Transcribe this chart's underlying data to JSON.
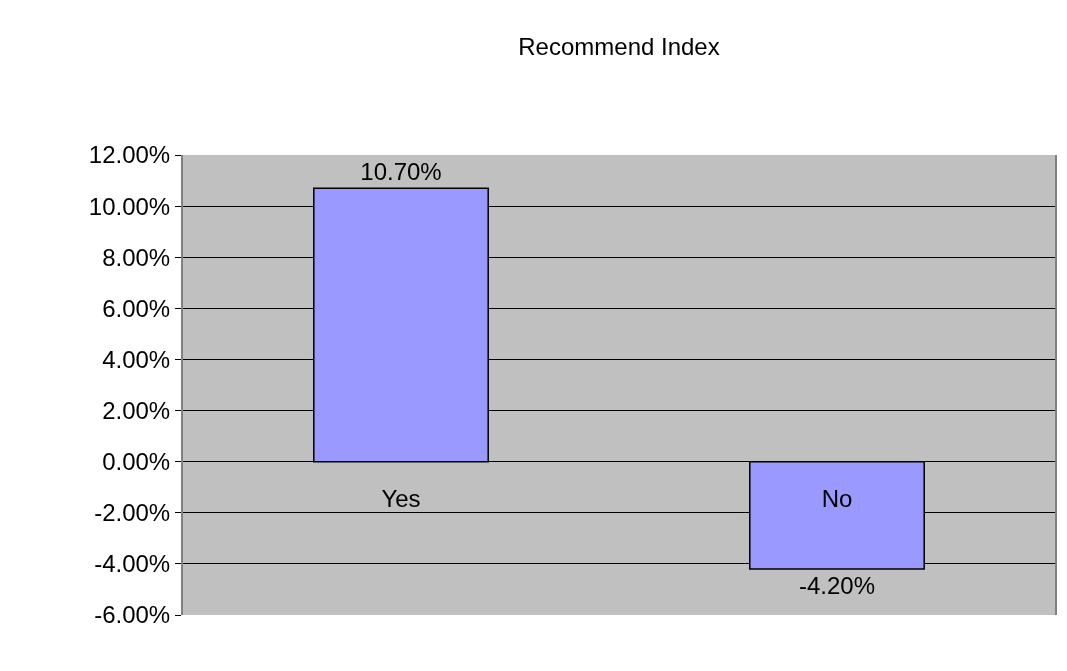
{
  "chart_data": {
    "type": "bar",
    "title": "Recommend Index",
    "categories": [
      "Yes",
      "No"
    ],
    "values": [
      10.7,
      -4.2
    ],
    "value_labels": [
      "10.70%",
      "-4.20%"
    ],
    "color": "#9999ff",
    "ylim": [
      -6,
      12
    ],
    "yticks": [
      {
        "value": -6,
        "label": "-6.00%"
      },
      {
        "value": -4,
        "label": "-4.00%"
      },
      {
        "value": -2,
        "label": "-2.00%"
      },
      {
        "value": 0,
        "label": "0.00%"
      },
      {
        "value": 2,
        "label": "2.00%"
      },
      {
        "value": 4,
        "label": "4.00%"
      },
      {
        "value": 6,
        "label": "6.00%"
      },
      {
        "value": 8,
        "label": "8.00%"
      },
      {
        "value": 10,
        "label": "10.00%"
      },
      {
        "value": 12,
        "label": "12.00%"
      }
    ],
    "grid": "y",
    "legend": false
  }
}
